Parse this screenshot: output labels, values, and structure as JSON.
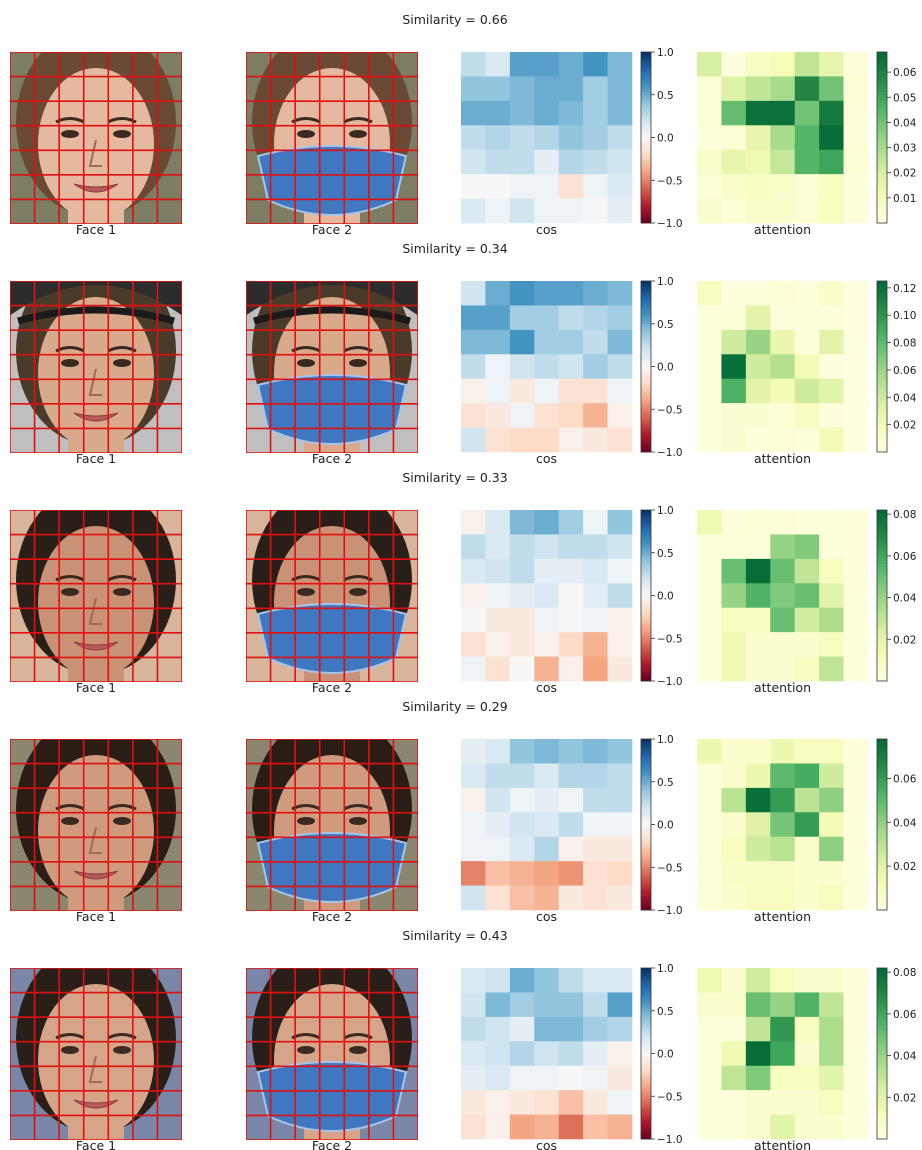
{
  "chart_data": [
    {
      "type": "heatmap",
      "title": "Similarity = 0.66",
      "face1_label": "Face 1",
      "face2_label": "Face 2",
      "face_style": {
        "skin": "#e5b9a0",
        "hair": "#6b4a35",
        "bg": "#7c7d62",
        "cap": null
      },
      "cos": {
        "xlabel": "cos",
        "cmap": "RdBu",
        "vmin": -1.0,
        "vmax": 1.0,
        "colorbar_ticks": [
          "1.0",
          "0.5",
          "0.0",
          "−0.5",
          "−1.0"
        ],
        "values": [
          [
            0.25,
            0.15,
            0.55,
            0.55,
            0.5,
            0.6,
            0.45
          ],
          [
            0.4,
            0.4,
            0.45,
            0.5,
            0.5,
            0.35,
            0.45
          ],
          [
            0.5,
            0.5,
            0.45,
            0.5,
            0.45,
            0.35,
            0.45
          ],
          [
            0.25,
            0.3,
            0.25,
            0.3,
            0.4,
            0.35,
            0.25
          ],
          [
            0.2,
            0.25,
            0.25,
            0.1,
            0.3,
            0.25,
            0.2
          ],
          [
            0.0,
            0.0,
            0.05,
            0.05,
            -0.15,
            0.05,
            0.15
          ],
          [
            0.15,
            0.05,
            0.2,
            0.05,
            0.05,
            0.0,
            0.1
          ]
        ]
      },
      "attention": {
        "xlabel": "attention",
        "cmap": "Greens",
        "vmin": 0.0,
        "vmax": 0.068,
        "colorbar_ticks": [
          "0.06",
          "0.05",
          "0.04",
          "0.03",
          "0.02",
          "0.01"
        ],
        "tick_values": [
          0.06,
          0.05,
          0.04,
          0.03,
          0.02,
          0.01
        ],
        "values": [
          [
            0.02,
            0.002,
            0.008,
            0.01,
            0.025,
            0.015,
            0.003
          ],
          [
            0.004,
            0.018,
            0.025,
            0.03,
            0.058,
            0.04,
            0.004
          ],
          [
            0.004,
            0.042,
            0.065,
            0.065,
            0.04,
            0.062,
            0.003
          ],
          [
            0.002,
            0.004,
            0.015,
            0.03,
            0.045,
            0.066,
            0.003
          ],
          [
            0.006,
            0.015,
            0.012,
            0.024,
            0.045,
            0.05,
            0.004
          ],
          [
            0.004,
            0.006,
            0.008,
            0.006,
            0.004,
            0.008,
            0.002
          ],
          [
            0.005,
            0.004,
            0.006,
            0.006,
            0.004,
            0.009,
            0.002
          ]
        ]
      }
    },
    {
      "type": "heatmap",
      "title": "Similarity = 0.34",
      "face1_label": "Face 1",
      "face2_label": "Face 2",
      "face_style": {
        "skin": "#d9a98b",
        "hair": "#4a3a2a",
        "bg": "#bfbfbf",
        "cap": "#2c2c2c"
      },
      "cos": {
        "xlabel": "cos",
        "cmap": "RdBu",
        "vmin": -1.0,
        "vmax": 1.0,
        "colorbar_ticks": [
          "1.0",
          "0.5",
          "0.0",
          "−0.5",
          "−1.0"
        ],
        "values": [
          [
            0.2,
            0.5,
            0.6,
            0.55,
            0.55,
            0.5,
            0.45
          ],
          [
            0.55,
            0.55,
            0.35,
            0.35,
            0.25,
            0.3,
            0.35
          ],
          [
            0.45,
            0.45,
            0.6,
            0.35,
            0.35,
            0.25,
            0.45
          ],
          [
            0.25,
            0.05,
            0.2,
            0.25,
            0.2,
            0.35,
            0.25
          ],
          [
            -0.05,
            0.05,
            -0.1,
            0.05,
            -0.15,
            -0.15,
            0.05
          ],
          [
            -0.15,
            -0.1,
            0.05,
            -0.15,
            -0.2,
            -0.35,
            -0.05
          ],
          [
            0.2,
            -0.15,
            -0.2,
            -0.2,
            -0.05,
            -0.1,
            -0.15
          ]
        ]
      },
      "attention": {
        "xlabel": "attention",
        "cmap": "Greens",
        "vmin": 0.0,
        "vmax": 0.125,
        "colorbar_ticks": [
          "0.12",
          "0.10",
          "0.08",
          "0.06",
          "0.04",
          "0.02"
        ],
        "tick_values": [
          0.12,
          0.1,
          0.08,
          0.06,
          0.04,
          0.02
        ],
        "values": [
          [
            0.015,
            0.004,
            0.004,
            0.006,
            0.004,
            0.012,
            0.002
          ],
          [
            0.004,
            0.006,
            0.03,
            0.004,
            0.004,
            0.004,
            0.002
          ],
          [
            0.004,
            0.04,
            0.06,
            0.025,
            0.004,
            0.03,
            0.002
          ],
          [
            0.004,
            0.12,
            0.04,
            0.05,
            0.02,
            0.004,
            0.002
          ],
          [
            0.004,
            0.085,
            0.03,
            0.02,
            0.04,
            0.03,
            0.002
          ],
          [
            0.004,
            0.008,
            0.008,
            0.006,
            0.015,
            0.004,
            0.002
          ],
          [
            0.004,
            0.008,
            0.004,
            0.006,
            0.004,
            0.02,
            0.002
          ]
        ]
      }
    },
    {
      "type": "heatmap",
      "title": "Similarity = 0.33",
      "face1_label": "Face 1",
      "face2_label": "Face 2",
      "face_style": {
        "skin": "#c99277",
        "hair": "#2a1e18",
        "bg": "#d8b49a",
        "cap": null
      },
      "cos": {
        "xlabel": "cos",
        "cmap": "RdBu",
        "vmin": -1.0,
        "vmax": 1.0,
        "colorbar_ticks": [
          "1.0",
          "0.5",
          "0.0",
          "−0.5",
          "−1.0"
        ],
        "values": [
          [
            -0.05,
            0.15,
            0.45,
            0.5,
            0.35,
            0.05,
            0.4
          ],
          [
            0.25,
            0.15,
            0.25,
            0.2,
            0.25,
            0.25,
            0.2
          ],
          [
            0.15,
            0.2,
            0.25,
            0.1,
            0.1,
            0.15,
            0.05
          ],
          [
            -0.05,
            0.05,
            0.1,
            0.15,
            0.0,
            0.1,
            0.25
          ],
          [
            0.0,
            -0.1,
            -0.1,
            0.05,
            0.0,
            0.05,
            -0.05
          ],
          [
            -0.15,
            -0.05,
            -0.1,
            -0.05,
            -0.2,
            -0.35,
            -0.05
          ],
          [
            0.05,
            -0.15,
            0.0,
            -0.35,
            -0.05,
            -0.4,
            -0.1
          ]
        ]
      },
      "attention": {
        "xlabel": "attention",
        "cmap": "Greens",
        "vmin": 0.0,
        "vmax": 0.082,
        "colorbar_ticks": [
          "0.08",
          "0.06",
          "0.04",
          "0.02"
        ],
        "tick_values": [
          0.08,
          0.06,
          0.04,
          0.02
        ],
        "values": [
          [
            0.015,
            0.003,
            0.004,
            0.004,
            0.003,
            0.003,
            0.002
          ],
          [
            0.003,
            0.003,
            0.003,
            0.04,
            0.045,
            0.003,
            0.002
          ],
          [
            0.003,
            0.05,
            0.08,
            0.05,
            0.03,
            0.01,
            0.002
          ],
          [
            0.003,
            0.04,
            0.055,
            0.045,
            0.05,
            0.02,
            0.002
          ],
          [
            0.003,
            0.01,
            0.01,
            0.05,
            0.025,
            0.035,
            0.002
          ],
          [
            0.003,
            0.015,
            0.006,
            0.006,
            0.006,
            0.01,
            0.002
          ],
          [
            0.003,
            0.015,
            0.006,
            0.006,
            0.01,
            0.03,
            0.002
          ]
        ]
      }
    },
    {
      "type": "heatmap",
      "title": "Similarity = 0.29",
      "face1_label": "Face 1",
      "face2_label": "Face 2",
      "face_style": {
        "skin": "#cf9a7e",
        "hair": "#2a1d16",
        "bg": "#8a8670",
        "cap": null
      },
      "cos": {
        "xlabel": "cos",
        "cmap": "RdBu",
        "vmin": -1.0,
        "vmax": 1.0,
        "colorbar_ticks": [
          "1.0",
          "0.5",
          "0.0",
          "−0.5",
          "−1.0"
        ],
        "values": [
          [
            0.1,
            0.15,
            0.4,
            0.45,
            0.4,
            0.45,
            0.4
          ],
          [
            0.15,
            0.25,
            0.25,
            0.15,
            0.3,
            0.3,
            0.25
          ],
          [
            -0.05,
            0.2,
            0.05,
            0.1,
            0.05,
            0.25,
            0.25
          ],
          [
            0.05,
            0.1,
            0.2,
            0.15,
            0.25,
            0.05,
            0.05
          ],
          [
            0.05,
            0.05,
            0.15,
            0.3,
            -0.05,
            -0.1,
            -0.1
          ],
          [
            -0.5,
            -0.3,
            -0.35,
            -0.4,
            -0.45,
            -0.15,
            -0.2
          ],
          [
            0.2,
            -0.15,
            -0.3,
            -0.35,
            -0.1,
            -0.15,
            -0.1
          ]
        ]
      },
      "attention": {
        "xlabel": "attention",
        "cmap": "Greens",
        "vmin": 0.0,
        "vmax": 0.078,
        "colorbar_ticks": [
          "0.06",
          "0.04",
          "0.02"
        ],
        "tick_values": [
          0.06,
          0.04,
          0.02
        ],
        "values": [
          [
            0.015,
            0.006,
            0.006,
            0.015,
            0.01,
            0.01,
            0.002
          ],
          [
            0.003,
            0.006,
            0.015,
            0.05,
            0.055,
            0.025,
            0.002
          ],
          [
            0.003,
            0.03,
            0.075,
            0.06,
            0.03,
            0.04,
            0.002
          ],
          [
            0.003,
            0.006,
            0.02,
            0.045,
            0.06,
            0.012,
            0.002
          ],
          [
            0.003,
            0.01,
            0.025,
            0.03,
            0.006,
            0.04,
            0.002
          ],
          [
            0.003,
            0.008,
            0.008,
            0.008,
            0.006,
            0.006,
            0.002
          ],
          [
            0.003,
            0.006,
            0.01,
            0.01,
            0.006,
            0.01,
            0.002
          ]
        ]
      }
    },
    {
      "type": "heatmap",
      "title": "Similarity = 0.43",
      "face1_label": "Face 1",
      "face2_label": "Face 2",
      "face_style": {
        "skin": "#d6a589",
        "hair": "#2a1e18",
        "bg": "#7a86a8",
        "cap": null
      },
      "cos": {
        "xlabel": "cos",
        "cmap": "RdBu",
        "vmin": -1.0,
        "vmax": 1.0,
        "colorbar_ticks": [
          "1.0",
          "0.5",
          "0.0",
          "−0.5",
          "−1.0"
        ],
        "values": [
          [
            0.15,
            0.2,
            0.5,
            0.4,
            0.25,
            0.15,
            0.15
          ],
          [
            0.2,
            0.45,
            0.35,
            0.4,
            0.4,
            0.25,
            0.55
          ],
          [
            0.25,
            0.2,
            0.1,
            0.45,
            0.45,
            0.35,
            0.3
          ],
          [
            0.15,
            0.2,
            0.3,
            0.2,
            0.25,
            0.1,
            -0.05
          ],
          [
            0.1,
            0.15,
            0.05,
            0.05,
            0.0,
            0.05,
            -0.1
          ],
          [
            -0.1,
            -0.05,
            -0.1,
            -0.15,
            -0.3,
            -0.1,
            0.05
          ],
          [
            -0.15,
            -0.05,
            -0.4,
            -0.35,
            -0.55,
            -0.3,
            -0.35
          ]
        ]
      },
      "attention": {
        "xlabel": "attention",
        "cmap": "Greens",
        "vmin": 0.0,
        "vmax": 0.082,
        "colorbar_ticks": [
          "0.08",
          "0.06",
          "0.04",
          "0.02"
        ],
        "tick_values": [
          0.08,
          0.06,
          0.04,
          0.02
        ],
        "values": [
          [
            0.015,
            0.006,
            0.025,
            0.01,
            0.006,
            0.006,
            0.002
          ],
          [
            0.006,
            0.006,
            0.05,
            0.04,
            0.055,
            0.03,
            0.002
          ],
          [
            0.003,
            0.003,
            0.03,
            0.065,
            0.01,
            0.035,
            0.002
          ],
          [
            0.003,
            0.015,
            0.08,
            0.06,
            0.006,
            0.035,
            0.002
          ],
          [
            0.003,
            0.03,
            0.045,
            0.01,
            0.01,
            0.02,
            0.002
          ],
          [
            0.003,
            0.003,
            0.006,
            0.006,
            0.006,
            0.01,
            0.002
          ],
          [
            0.003,
            0.003,
            0.006,
            0.02,
            0.006,
            0.006,
            0.002
          ]
        ]
      }
    }
  ]
}
